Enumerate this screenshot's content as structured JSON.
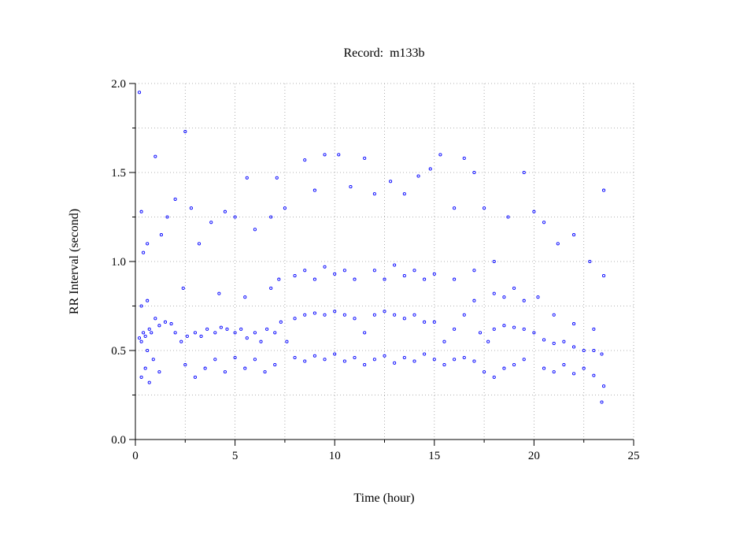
{
  "chart_data": {
    "type": "scatter",
    "title": "Record:  m133b",
    "xlabel": "Time (hour)",
    "ylabel": "RR Interval (second)",
    "xlim": [
      0,
      25
    ],
    "xticks": [
      0,
      5,
      10,
      15,
      20,
      25
    ],
    "minor_xticks": [
      2.5,
      7.5,
      12.5,
      17.5,
      22.5
    ],
    "ylim": [
      0,
      2
    ],
    "yticks": [
      {
        "value": 0,
        "label": "0.0"
      },
      {
        "value": 0.5,
        "label": "0.5"
      },
      {
        "value": 1,
        "label": "1.0"
      },
      {
        "value": 1.5,
        "label": "1.5"
      },
      {
        "value": 2,
        "label": "2.0"
      }
    ],
    "minor_yticks": [
      0.25,
      0.75,
      1.25,
      1.75
    ],
    "grid": true,
    "series": [
      {
        "color": "#0000ff",
        "x": [
          0.2,
          0.3,
          0.4,
          0.5,
          0.6,
          0.7,
          0.8,
          1.0,
          1.2,
          1.5,
          1.8,
          2.0,
          2.3,
          2.6,
          3.0,
          3.3,
          3.6,
          4.0,
          4.3,
          4.6,
          5.0,
          5.3,
          5.6,
          6.0,
          6.3,
          6.6,
          7.0,
          7.3,
          7.6,
          8.0,
          8.5,
          9.0,
          9.5,
          10.0,
          10.5,
          11.0,
          11.5,
          12.0,
          12.5,
          13.0,
          13.5,
          14.0,
          14.5,
          15.0,
          15.5,
          16.0,
          16.5,
          17.0,
          17.3,
          17.7,
          18.0,
          18.5,
          19.0,
          19.5,
          20.0,
          20.5,
          21.0,
          21.5,
          22.0,
          22.5,
          23.0,
          23.4,
          0.3,
          0.5,
          0.7,
          0.9,
          1.2,
          2.5,
          3.0,
          3.5,
          4.0,
          4.5,
          5.0,
          5.5,
          6.0,
          6.5,
          7.0,
          8.0,
          8.5,
          9.0,
          9.5,
          10.0,
          10.5,
          11.0,
          11.5,
          12.0,
          12.5,
          13.0,
          13.5,
          14.0,
          14.5,
          15.0,
          15.5,
          16.0,
          16.5,
          17.0,
          17.5,
          18.0,
          18.5,
          19.0,
          19.5,
          20.5,
          21.0,
          21.5,
          22.0,
          22.5,
          23.0,
          23.5,
          23.4,
          0.3,
          0.6,
          2.4,
          4.2,
          5.5,
          6.8,
          7.2,
          8.0,
          8.5,
          9.0,
          9.5,
          10.0,
          10.5,
          11.0,
          12.0,
          12.5,
          13.0,
          13.5,
          14.0,
          14.5,
          15.0,
          16.0,
          17.0,
          18.0,
          18.5,
          19.0,
          19.5,
          20.2,
          21.0,
          22.0,
          23.0,
          0.2,
          0.3,
          0.4,
          0.6,
          1.0,
          1.3,
          1.6,
          2.0,
          2.5,
          2.8,
          3.2,
          3.8,
          4.5,
          5.0,
          5.6,
          6.0,
          6.8,
          7.1,
          7.5,
          8.5,
          9.0,
          9.5,
          10.2,
          10.8,
          11.5,
          12.0,
          12.8,
          13.5,
          14.2,
          14.8,
          15.3,
          16.0,
          16.5,
          17.0,
          17.5,
          18.0,
          18.7,
          19.5,
          20.0,
          20.5,
          21.2,
          22.0,
          22.8,
          23.5,
          23.5
        ],
        "values": [
          0.57,
          0.55,
          0.6,
          0.58,
          0.5,
          0.62,
          0.6,
          0.68,
          0.64,
          0.66,
          0.65,
          0.6,
          0.55,
          0.58,
          0.6,
          0.58,
          0.62,
          0.6,
          0.63,
          0.62,
          0.6,
          0.62,
          0.57,
          0.6,
          0.55,
          0.62,
          0.6,
          0.66,
          0.55,
          0.68,
          0.7,
          0.71,
          0.7,
          0.72,
          0.7,
          0.68,
          0.6,
          0.7,
          0.72,
          0.7,
          0.68,
          0.7,
          0.66,
          0.66,
          0.55,
          0.62,
          0.7,
          0.78,
          0.6,
          0.55,
          0.62,
          0.64,
          0.63,
          0.62,
          0.6,
          0.56,
          0.54,
          0.55,
          0.52,
          0.5,
          0.5,
          0.48,
          0.35,
          0.4,
          0.32,
          0.45,
          0.38,
          0.42,
          0.35,
          0.4,
          0.45,
          0.38,
          0.46,
          0.4,
          0.45,
          0.38,
          0.42,
          0.46,
          0.44,
          0.47,
          0.45,
          0.48,
          0.44,
          0.46,
          0.42,
          0.45,
          0.47,
          0.43,
          0.46,
          0.44,
          0.48,
          0.45,
          0.42,
          0.45,
          0.46,
          0.44,
          0.38,
          0.35,
          0.4,
          0.42,
          0.45,
          0.4,
          0.38,
          0.42,
          0.37,
          0.4,
          0.36,
          0.3,
          0.21,
          0.75,
          0.78,
          0.85,
          0.82,
          0.8,
          0.85,
          0.9,
          0.92,
          0.95,
          0.9,
          0.97,
          0.93,
          0.95,
          0.9,
          0.95,
          0.9,
          0.98,
          0.92,
          0.95,
          0.9,
          0.93,
          0.9,
          0.95,
          0.82,
          0.8,
          0.85,
          0.78,
          0.8,
          0.7,
          0.65,
          0.62,
          1.95,
          1.28,
          1.05,
          1.1,
          1.59,
          1.15,
          1.25,
          1.35,
          1.73,
          1.3,
          1.1,
          1.22,
          1.28,
          1.25,
          1.47,
          1.18,
          1.25,
          1.47,
          1.3,
          1.57,
          1.4,
          1.6,
          1.6,
          1.42,
          1.58,
          1.38,
          1.45,
          1.38,
          1.48,
          1.52,
          1.6,
          1.3,
          1.58,
          1.5,
          1.3,
          1.0,
          1.25,
          1.5,
          1.28,
          1.22,
          1.1,
          1.15,
          1.0,
          1.4,
          0.92
        ]
      }
    ]
  }
}
